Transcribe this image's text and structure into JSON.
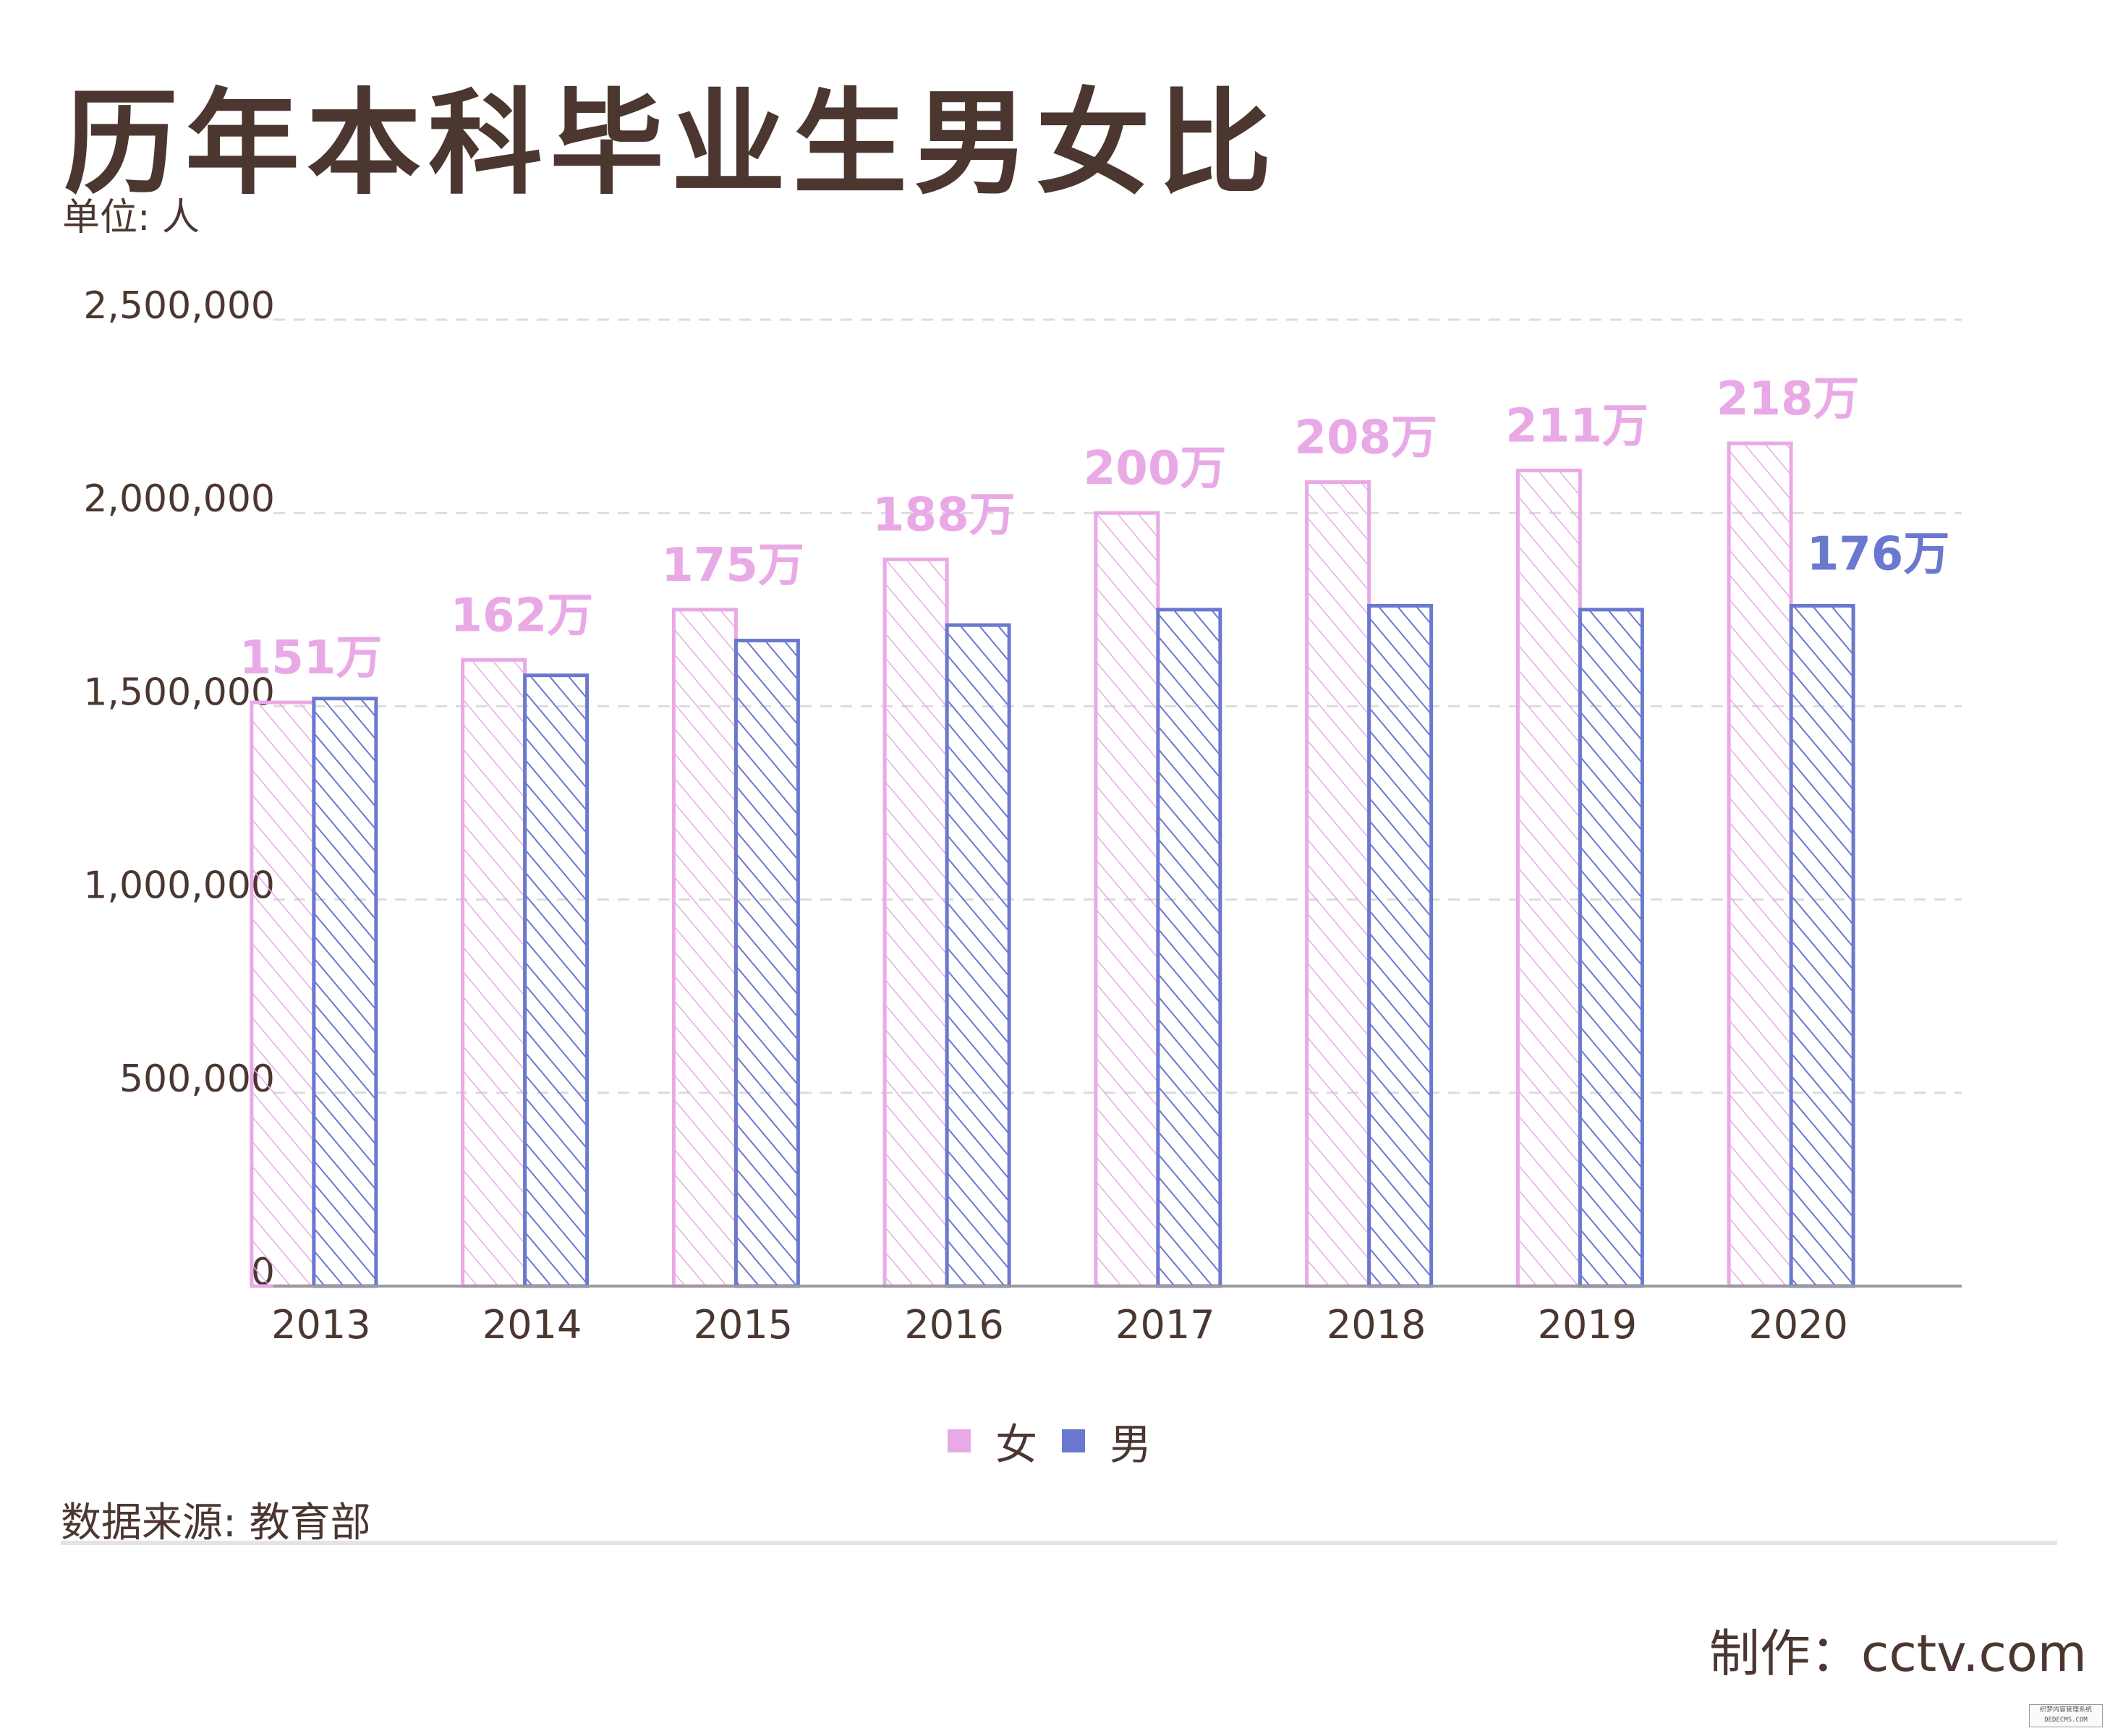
{
  "title": "历年本科毕业生男女比",
  "unit": "单位: 人",
  "source": "数据来源: 教育部",
  "credit": "制作：cctv.com",
  "watermark": "织梦内容管理系统 DEDECMS.COM",
  "colors": {
    "female": "#e9a9e6",
    "male": "#6b78cf",
    "text": "#4b3730",
    "grid": "#dcdcdc",
    "axis": "#9a9a9a"
  },
  "chart_data": {
    "type": "bar",
    "title": "历年本科毕业生男女比",
    "xlabel": "",
    "ylabel": "单位: 人",
    "ylim": [
      0,
      2500000
    ],
    "yticks": [
      0,
      500000,
      1000000,
      1500000,
      2000000,
      2500000
    ],
    "ytick_labels": [
      "0",
      "500,000",
      "1,000,000",
      "1,500,000",
      "2,000,000",
      "2,500,000"
    ],
    "categories": [
      "2013",
      "2014",
      "2015",
      "2016",
      "2017",
      "2018",
      "2019",
      "2020"
    ],
    "series": [
      {
        "name": "女",
        "color": "#e9a9e6",
        "values": [
          1510000,
          1620000,
          1750000,
          1880000,
          2000000,
          2080000,
          2110000,
          2180000
        ],
        "labels": [
          "151万",
          "162万",
          "175万",
          "188万",
          "200万",
          "208万",
          "211万",
          "218万"
        ]
      },
      {
        "name": "男",
        "color": "#6b78cf",
        "values": [
          1520000,
          1580000,
          1670000,
          1710000,
          1750000,
          1760000,
          1750000,
          1760000
        ],
        "labels": [
          "",
          "",
          "",
          "",
          "",
          "",
          "",
          "176万"
        ]
      }
    ],
    "grid": true,
    "legend_position": "bottom-center"
  }
}
